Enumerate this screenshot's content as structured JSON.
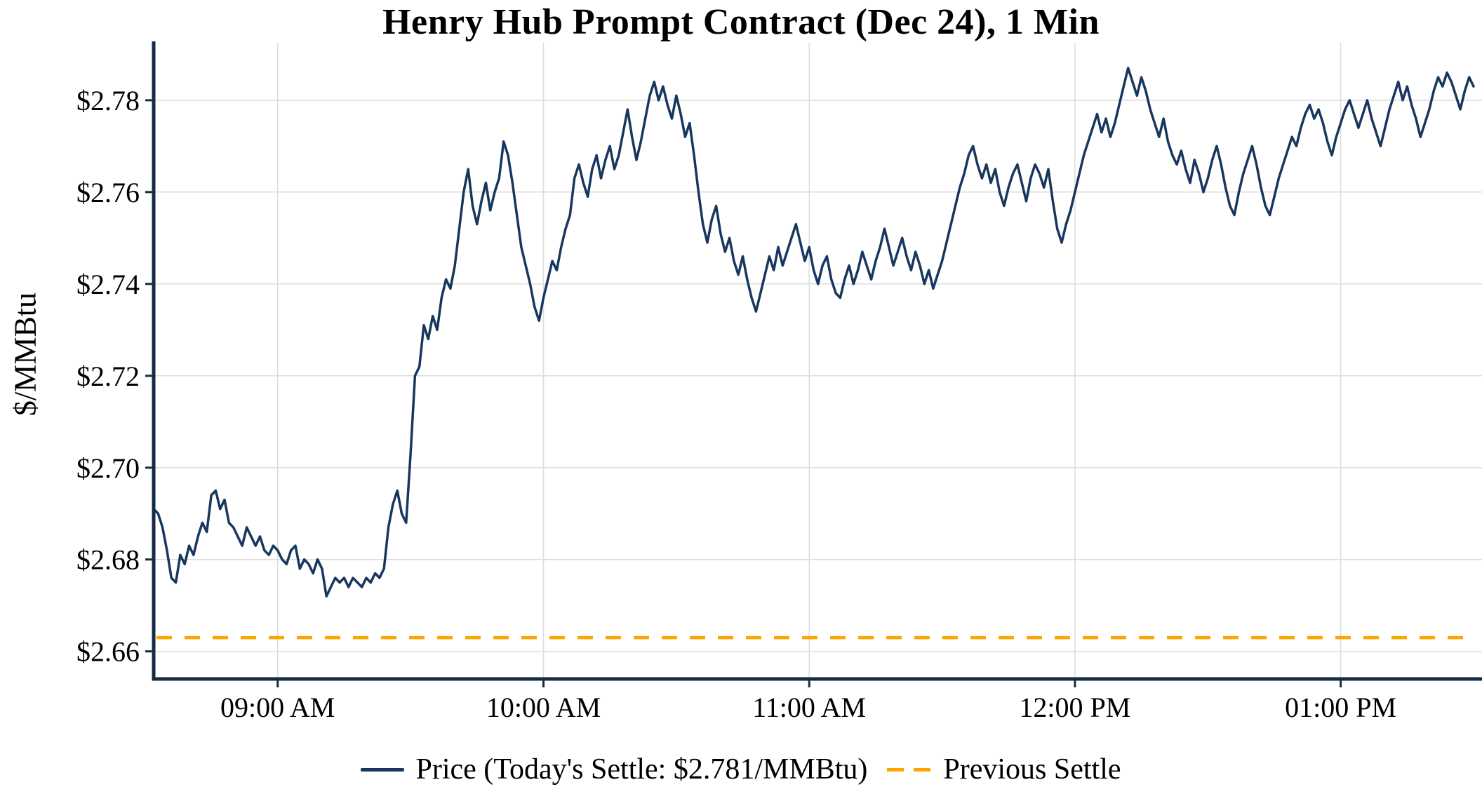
{
  "title": "Henry Hub Prompt Contract (Dec 24), 1 Min",
  "y_axis_label": "$/MMBtu",
  "legend": {
    "price_label": "Price (Today's Settle: $2.781/MMBtu)",
    "previous_settle_label": "Previous Settle"
  },
  "colors": {
    "price_line": "#17375e",
    "previous_settle_line": "#ffa500",
    "grid": "#dcdcdc",
    "axis": "#152a45",
    "text": "#000000",
    "background": "#ffffff"
  },
  "chart_data": {
    "type": "line",
    "title": "Henry Hub Prompt Contract (Dec 24), 1 Min",
    "xlabel": "",
    "ylabel": "$/MMBtu",
    "x_unit": "minutes after midnight (1-minute bars, 08:32 AM to 01:30 PM)",
    "x_domain_minutes": [
      512,
      810
    ],
    "y_domain": [
      2.654,
      2.7925
    ],
    "grid": true,
    "legend_position": "bottom",
    "todays_settle": 2.781,
    "previous_settle": 2.663,
    "x_ticks": [
      {
        "minute": 540,
        "label": "09:00 AM"
      },
      {
        "minute": 600,
        "label": "10:00 AM"
      },
      {
        "minute": 660,
        "label": "11:00 AM"
      },
      {
        "minute": 720,
        "label": "12:00 PM"
      },
      {
        "minute": 780,
        "label": "01:00 PM"
      }
    ],
    "y_ticks": [
      {
        "value": 2.66,
        "label": "$2.66"
      },
      {
        "value": 2.68,
        "label": "$2.68"
      },
      {
        "value": 2.7,
        "label": "$2.70"
      },
      {
        "value": 2.72,
        "label": "$2.72"
      },
      {
        "value": 2.74,
        "label": "$2.74"
      },
      {
        "value": 2.76,
        "label": "$2.76"
      },
      {
        "value": 2.78,
        "label": "$2.78"
      }
    ],
    "series": [
      {
        "name": "Price",
        "color": "#17375e",
        "style": "solid",
        "start_minute": 512,
        "step_minutes": 1,
        "prices": [
          2.691,
          2.69,
          2.687,
          2.682,
          2.676,
          2.675,
          2.681,
          2.679,
          2.683,
          2.681,
          2.685,
          2.688,
          2.686,
          2.694,
          2.695,
          2.691,
          2.693,
          2.688,
          2.687,
          2.685,
          2.683,
          2.687,
          2.685,
          2.683,
          2.685,
          2.682,
          2.681,
          2.683,
          2.682,
          2.68,
          2.679,
          2.682,
          2.683,
          2.678,
          2.68,
          2.679,
          2.677,
          2.68,
          2.678,
          2.672,
          2.674,
          2.676,
          2.675,
          2.676,
          2.674,
          2.676,
          2.675,
          2.674,
          2.676,
          2.675,
          2.677,
          2.676,
          2.678,
          2.687,
          2.692,
          2.695,
          2.69,
          2.688,
          2.703,
          2.72,
          2.722,
          2.731,
          2.728,
          2.733,
          2.73,
          2.737,
          2.741,
          2.739,
          2.744,
          2.752,
          2.76,
          2.765,
          2.757,
          2.753,
          2.758,
          2.762,
          2.756,
          2.76,
          2.763,
          2.771,
          2.768,
          2.762,
          2.755,
          2.748,
          2.744,
          2.74,
          2.735,
          2.732,
          2.737,
          2.741,
          2.745,
          2.743,
          2.748,
          2.752,
          2.755,
          2.763,
          2.766,
          2.762,
          2.759,
          2.765,
          2.768,
          2.763,
          2.767,
          2.77,
          2.765,
          2.768,
          2.773,
          2.778,
          2.772,
          2.767,
          2.771,
          2.776,
          2.781,
          2.784,
          2.78,
          2.783,
          2.779,
          2.776,
          2.781,
          2.777,
          2.772,
          2.775,
          2.768,
          2.76,
          2.753,
          2.749,
          2.754,
          2.757,
          2.751,
          2.747,
          2.75,
          2.745,
          2.742,
          2.746,
          2.741,
          2.737,
          2.734,
          2.738,
          2.742,
          2.746,
          2.743,
          2.748,
          2.744,
          2.747,
          2.75,
          2.753,
          2.749,
          2.745,
          2.748,
          2.743,
          2.74,
          2.744,
          2.746,
          2.741,
          2.738,
          2.737,
          2.741,
          2.744,
          2.74,
          2.743,
          2.747,
          2.744,
          2.741,
          2.745,
          2.748,
          2.752,
          2.748,
          2.744,
          2.747,
          2.75,
          2.746,
          2.743,
          2.747,
          2.744,
          2.74,
          2.743,
          2.739,
          2.742,
          2.745,
          2.749,
          2.753,
          2.757,
          2.761,
          2.764,
          2.768,
          2.77,
          2.766,
          2.763,
          2.766,
          2.762,
          2.765,
          2.76,
          2.757,
          2.761,
          2.764,
          2.766,
          2.762,
          2.758,
          2.763,
          2.766,
          2.764,
          2.761,
          2.765,
          2.758,
          2.752,
          2.749,
          2.753,
          2.756,
          2.76,
          2.764,
          2.768,
          2.771,
          2.774,
          2.777,
          2.773,
          2.776,
          2.772,
          2.775,
          2.779,
          2.783,
          2.787,
          2.784,
          2.781,
          2.785,
          2.782,
          2.778,
          2.775,
          2.772,
          2.776,
          2.771,
          2.768,
          2.766,
          2.769,
          2.765,
          2.762,
          2.767,
          2.764,
          2.76,
          2.763,
          2.767,
          2.77,
          2.766,
          2.761,
          2.757,
          2.755,
          2.76,
          2.764,
          2.767,
          2.77,
          2.766,
          2.761,
          2.757,
          2.755,
          2.759,
          2.763,
          2.766,
          2.769,
          2.772,
          2.77,
          2.774,
          2.777,
          2.779,
          2.776,
          2.778,
          2.775,
          2.771,
          2.768,
          2.772,
          2.775,
          2.778,
          2.78,
          2.777,
          2.774,
          2.777,
          2.78,
          2.776,
          2.773,
          2.77,
          2.774,
          2.778,
          2.781,
          2.784,
          2.78,
          2.783,
          2.779,
          2.776,
          2.772,
          2.775,
          2.778,
          2.782,
          2.785,
          2.783,
          2.786,
          2.784,
          2.781,
          2.778,
          2.782,
          2.785,
          2.783
        ]
      },
      {
        "name": "Previous Settle",
        "color": "#ffa500",
        "style": "dashed",
        "value": 2.663
      }
    ]
  }
}
